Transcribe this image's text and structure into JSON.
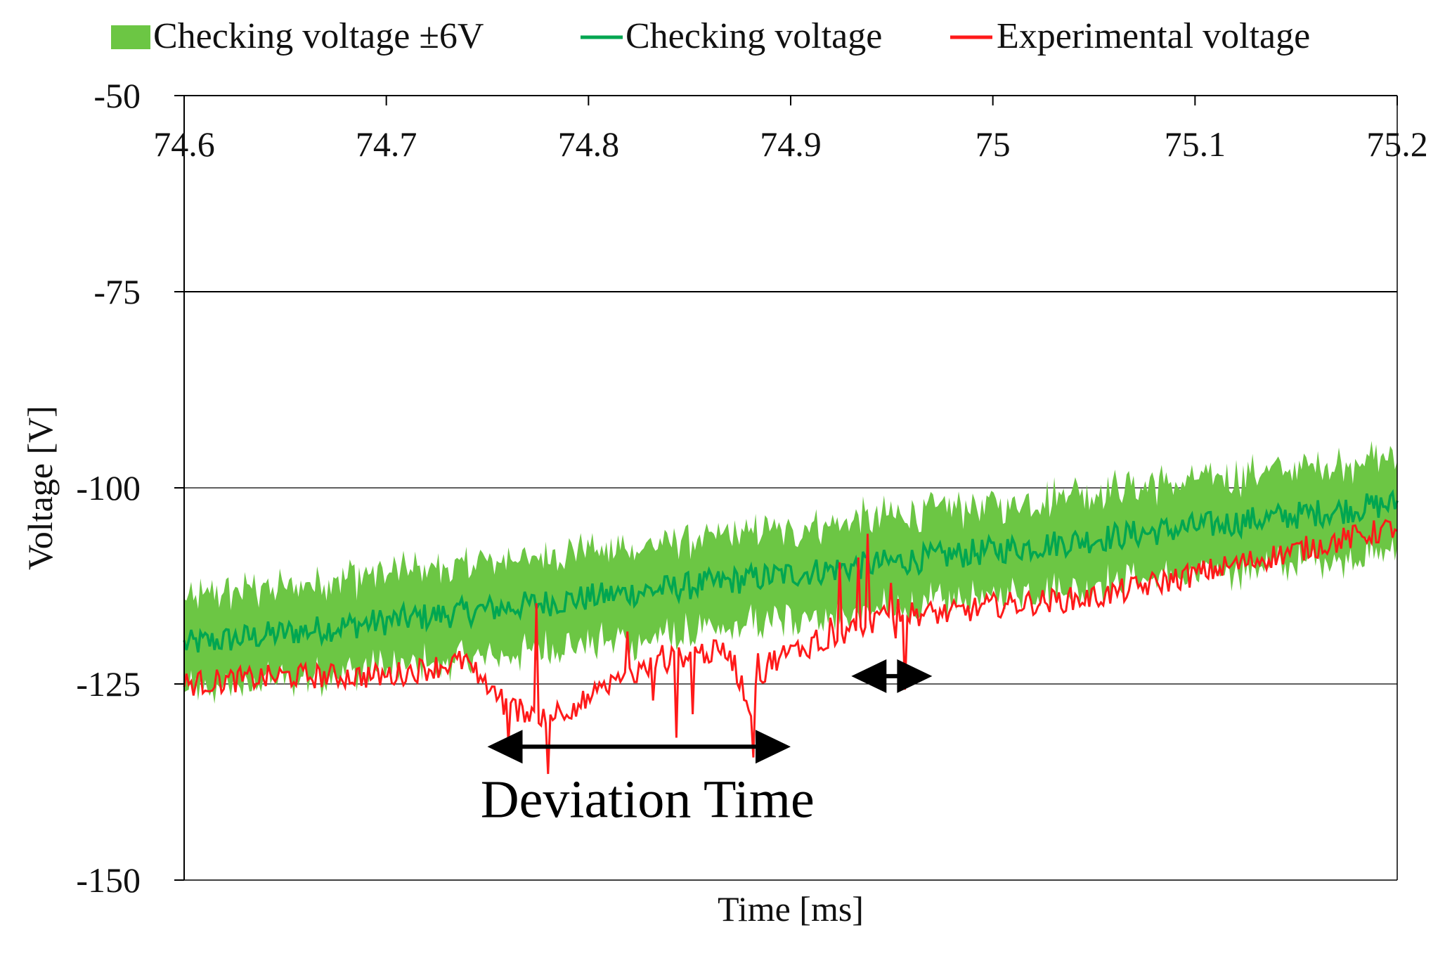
{
  "chart_data": {
    "type": "line",
    "xlabel": "Time [ms]",
    "ylabel": "Voltage [V]",
    "xlim": [
      74.6,
      75.2
    ],
    "ylim": [
      -150,
      -50
    ],
    "x_ticks": [
      "74.6",
      "74.7",
      "74.8",
      "74.9",
      "75",
      "75.1",
      "75.2"
    ],
    "y_ticks": [
      "-50",
      "-75",
      "-100",
      "-125",
      "-150"
    ],
    "grid": "horizontal",
    "legend_position": "top",
    "series": [
      {
        "name": "Checking voltage ±6V",
        "kind": "band",
        "color": "#6cc644",
        "band_halfwidth": 6,
        "x": [
          74.6,
          75.2
        ],
        "y": [
          -120,
          -102
        ]
      },
      {
        "name": "Checking voltage",
        "kind": "line",
        "color": "#00a651",
        "x": [
          74.6,
          74.7,
          74.8,
          74.9,
          75.0,
          75.1,
          75.2
        ],
        "y": [
          -120,
          -117,
          -114,
          -111,
          -108,
          -105,
          -102
        ]
      },
      {
        "name": "Experimental voltage",
        "kind": "line",
        "color": "#ff1a1a",
        "x": [
          74.6,
          74.65,
          74.7,
          74.74,
          74.76,
          74.78,
          74.8,
          74.82,
          74.85,
          74.87,
          74.88,
          74.89,
          74.9,
          74.92,
          74.94,
          74.96,
          74.98,
          75.0,
          75.05,
          75.1,
          75.15,
          75.2
        ],
        "y": [
          -125,
          -124,
          -124,
          -122,
          -128,
          -129,
          -127,
          -124,
          -121,
          -121,
          -128,
          -122,
          -121,
          -119,
          -117,
          -116,
          -116,
          -115,
          -114,
          -111,
          -108,
          -105
        ]
      }
    ],
    "annotations": [
      {
        "text": "Deviation Time",
        "from_x": 74.75,
        "to_x": 74.9,
        "y": -133
      },
      {
        "text": "",
        "from_x": 74.93,
        "to_x": 74.97,
        "y": -124
      }
    ]
  }
}
